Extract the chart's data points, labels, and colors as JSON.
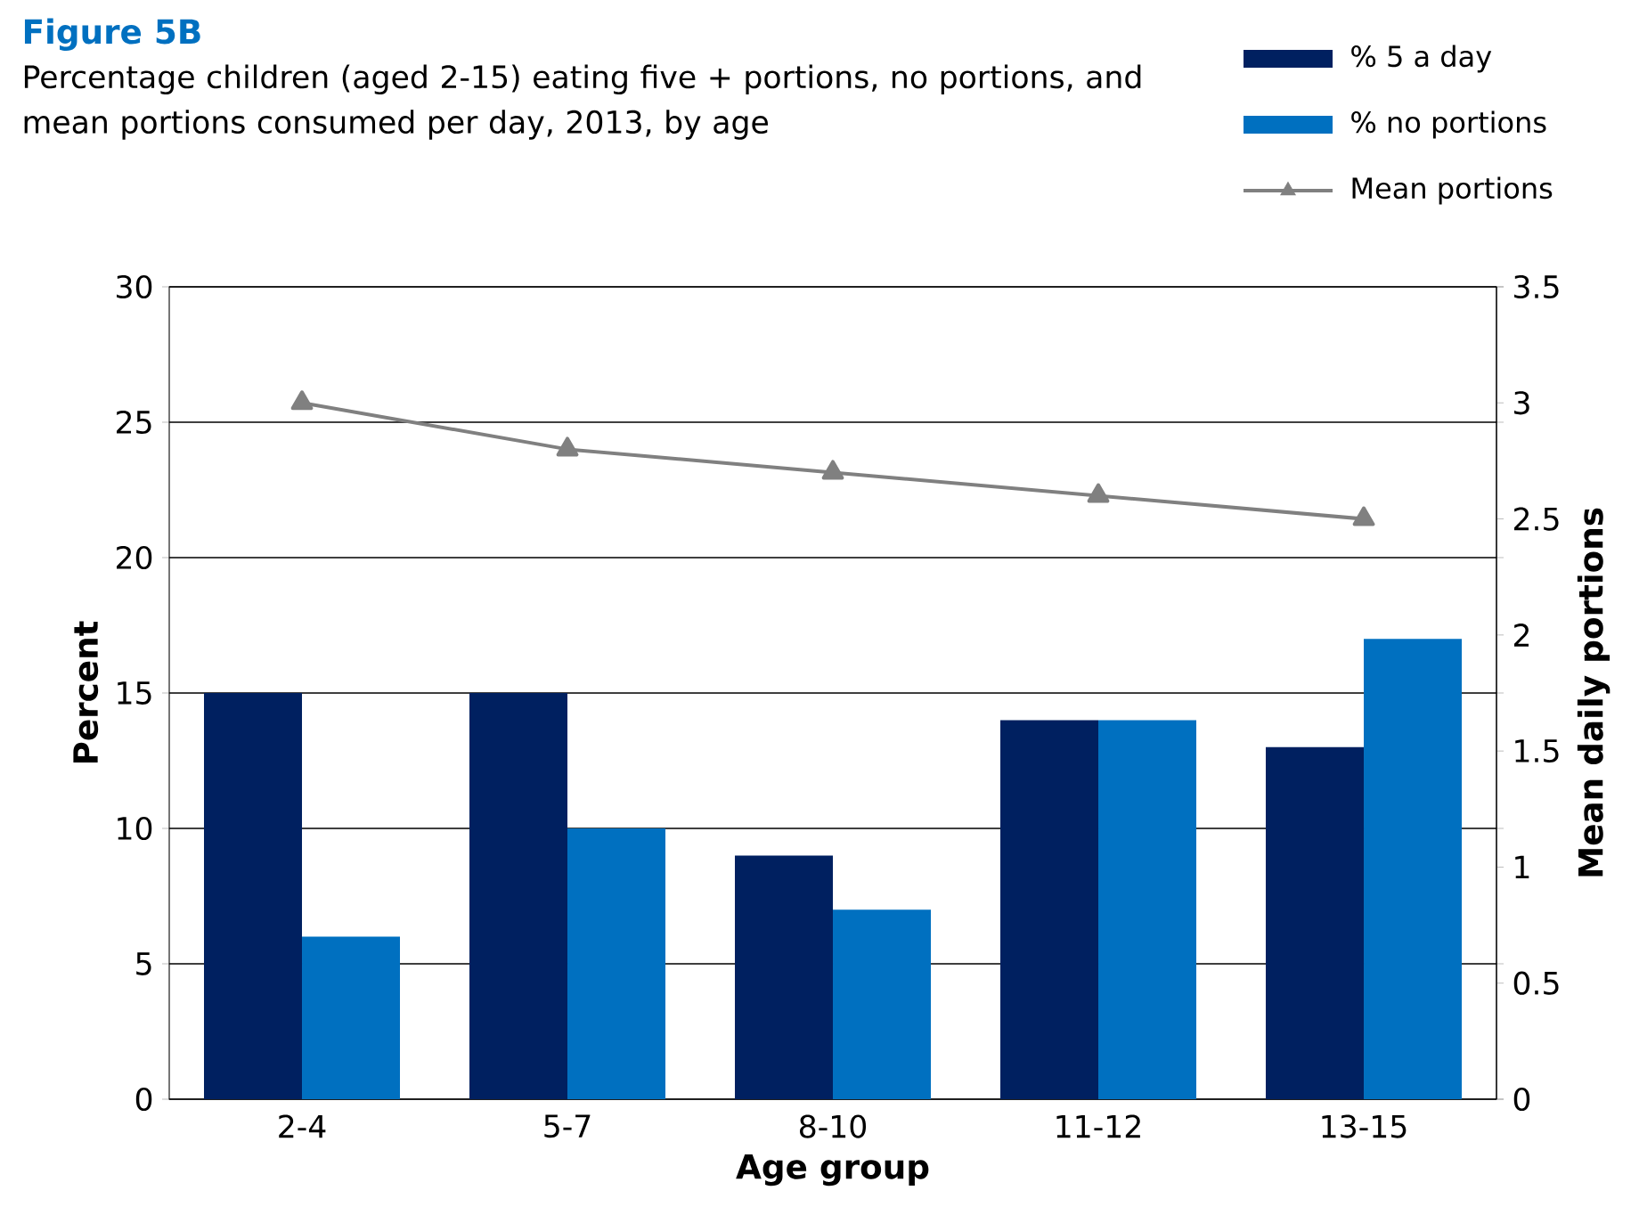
{
  "chart_data": {
    "type": "bar",
    "title": "Figure 5B",
    "subtitle": "Percentage children (aged 2-15) eating five + portions, no portions, and mean portions consumed per day, 2013, by age",
    "xlabel": "Age group",
    "ylabel": "Percent",
    "y2label": "Mean daily portions",
    "categories": [
      "2-4",
      "5-7",
      "8-10",
      "11-12",
      "13-15"
    ],
    "series": [
      {
        "name": "% 5 a day",
        "color": "#002060",
        "values": [
          15,
          15,
          9,
          14,
          13
        ]
      },
      {
        "name": "% no portions",
        "color": "#0070c0",
        "values": [
          6,
          10,
          7,
          14,
          17
        ]
      },
      {
        "name": "Mean portions",
        "type": "line",
        "axis": "y2",
        "color": "#808080",
        "marker": "triangle",
        "line_style": "solid",
        "values": [
          3.0,
          2.8,
          2.7,
          2.6,
          2.5
        ]
      }
    ],
    "ylim": [
      0,
      30
    ],
    "yticks": [
      0,
      5,
      10,
      15,
      20,
      25,
      30
    ],
    "y2lim": [
      0,
      3.5
    ],
    "y2ticks": [
      0,
      0.5,
      1,
      1.5,
      2,
      2.5,
      3,
      3.5
    ],
    "grid": "y",
    "legend": "top right"
  }
}
